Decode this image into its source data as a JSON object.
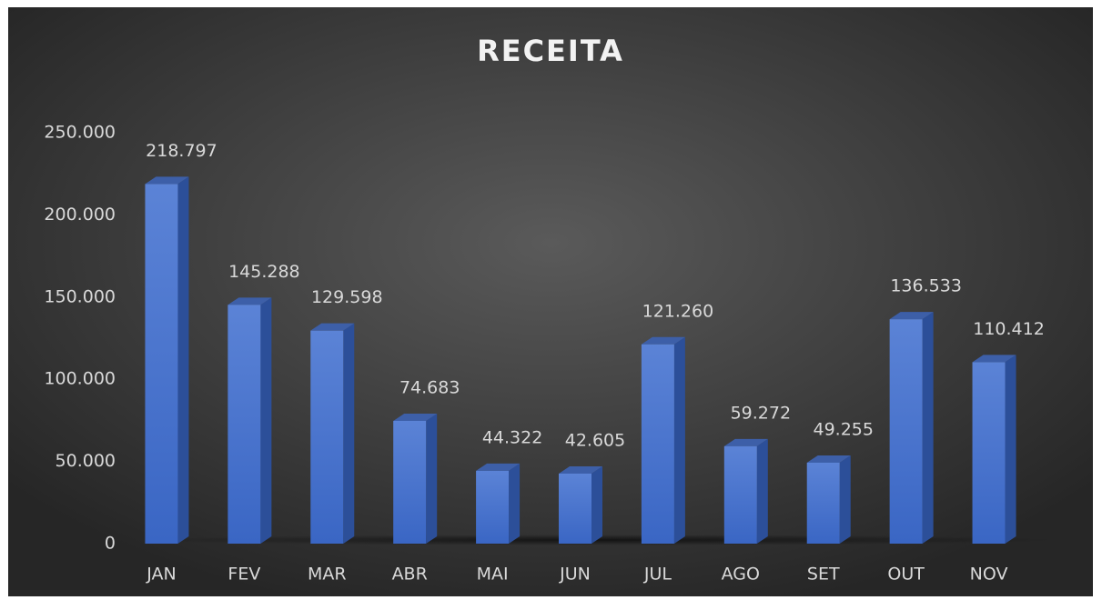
{
  "chart_data": {
    "type": "bar",
    "title": "RECEITA",
    "categories": [
      "JAN",
      "FEV",
      "MAR",
      "ABR",
      "MAI",
      "JUN",
      "JUL",
      "AGO",
      "SET",
      "OUT",
      "NOV"
    ],
    "values": [
      218797,
      145288,
      129598,
      74683,
      44322,
      42605,
      121260,
      59272,
      49255,
      136533,
      110412
    ],
    "value_labels": [
      "218.797",
      "145.288",
      "129.598",
      "74.683",
      "44.322",
      "42.605",
      "121.260",
      "59.272",
      "49.255",
      "136.533",
      "110.412"
    ],
    "color": "#4472c4",
    "ylim": [
      0,
      250000
    ],
    "yticks": [
      0,
      {
        "value": 50000,
        "label": "50.000"
      },
      {
        "value": 100000,
        "label": "100.000"
      },
      {
        "value": 150000,
        "label": "150.000"
      },
      {
        "value": 200000,
        "label": "200.000"
      },
      {
        "value": 250000,
        "label": "250.000"
      }
    ],
    "grid": false
  }
}
